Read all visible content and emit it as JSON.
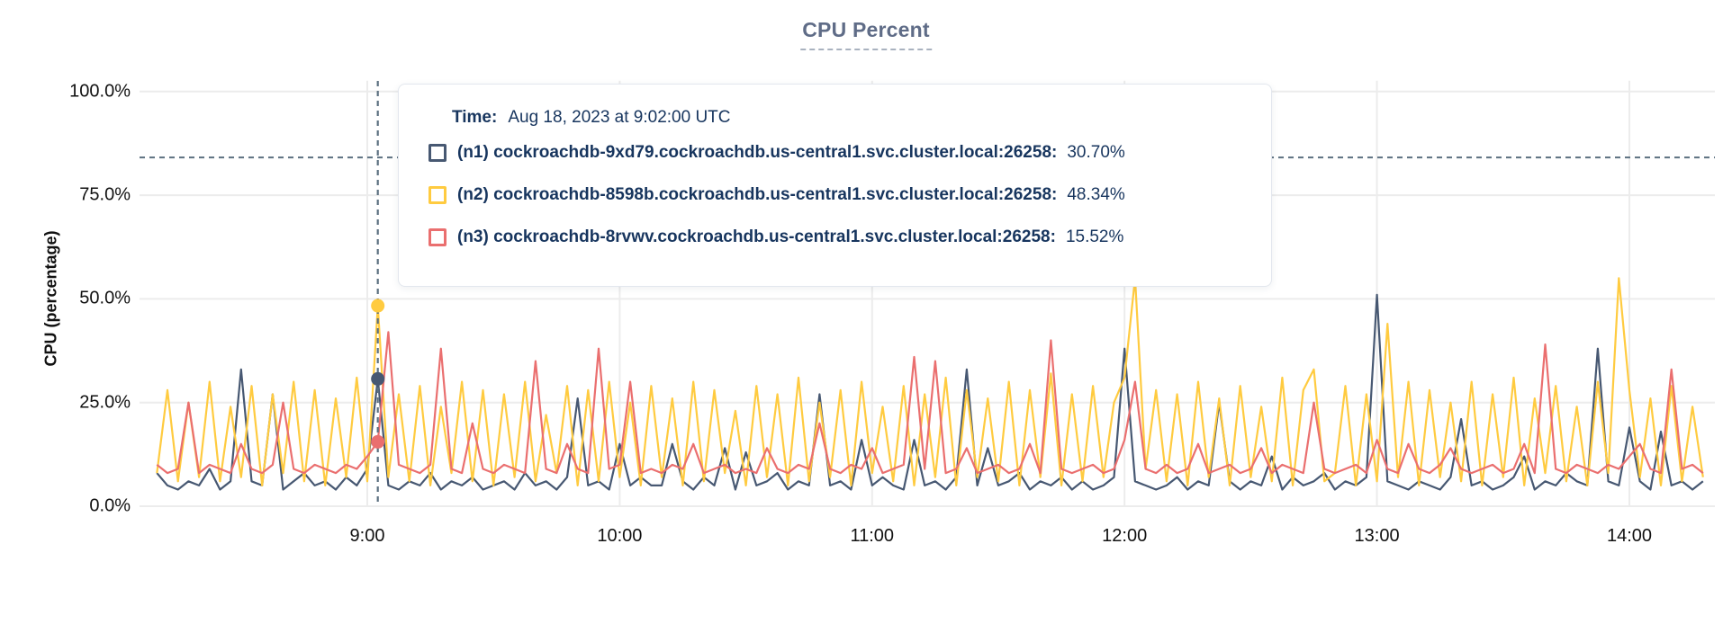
{
  "title": "CPU Percent",
  "y_axis": {
    "label": "CPU (percentage)",
    "ticks": [
      {
        "label": "100.0%",
        "value": 100
      },
      {
        "label": "75.0%",
        "value": 75
      },
      {
        "label": "50.0%",
        "value": 50
      },
      {
        "label": "25.0%",
        "value": 25
      },
      {
        "label": "0.0%",
        "value": 0
      }
    ]
  },
  "x_axis": {
    "ticks": [
      {
        "label": "9:00",
        "min": 540
      },
      {
        "label": "10:00",
        "min": 600
      },
      {
        "label": "11:00",
        "min": 660
      },
      {
        "label": "12:00",
        "min": 720
      },
      {
        "label": "13:00",
        "min": 780
      },
      {
        "label": "14:00",
        "min": 840
      }
    ]
  },
  "tooltip": {
    "time_label": "Time:",
    "time_value": "Aug 18, 2023 at 9:02:00 UTC",
    "series": [
      {
        "name": "(n1) cockroachdb-9xd79.cockroachdb.us-central1.svc.cluster.local:26258:",
        "value": "30.70%",
        "color": "#475872"
      },
      {
        "name": "(n2) cockroachdb-8598b.cockroachdb.us-central1.svc.cluster.local:26258:",
        "value": "48.34%",
        "color": "#ffcb40"
      },
      {
        "name": "(n3) cockroachdb-8rvwv.cockroachdb.us-central1.svc.cluster.local:26258:",
        "value": "15.52%",
        "color": "#ea6f6f"
      }
    ]
  },
  "hover": {
    "time_min": 542.5,
    "crosshair_y_percent": 84.1,
    "dot_values": [
      30.7,
      48.34,
      15.52
    ],
    "crosshair_color": "#5c7080"
  },
  "colors": {
    "grid": "#ececec",
    "title": "#5f6c87",
    "tooltip_text": "#17355e"
  },
  "chart_data": {
    "type": "line",
    "title": "CPU Percent",
    "xlabel": "",
    "ylabel": "CPU (percentage)",
    "ylim": [
      0,
      100
    ],
    "grid": true,
    "legend_position": "tooltip-overlay",
    "x_unit": "minutes-after-midnight",
    "x_domain_min": [
      486,
      860
    ],
    "x_start_min": 490,
    "x_step_min": 2.5,
    "series": [
      {
        "name": "(n1) cockroachdb-9xd79.cockroachdb.us-central1.svc.cluster.local:26258",
        "color": "#475872",
        "values": [
          8,
          5,
          4,
          6,
          5,
          9,
          4,
          6,
          33,
          6,
          5,
          27,
          4,
          6,
          8,
          5,
          6,
          4,
          7,
          5,
          9,
          30.7,
          5,
          4,
          6,
          5,
          8,
          4,
          6,
          5,
          7,
          4,
          5,
          6,
          4,
          8,
          5,
          6,
          4,
          7,
          26,
          5,
          6,
          4,
          15,
          5,
          7,
          5,
          5,
          15,
          6,
          4,
          7,
          5,
          14,
          4,
          13,
          5,
          6,
          8,
          4,
          6,
          5,
          27,
          5,
          6,
          4,
          16,
          5,
          7,
          5,
          4,
          16,
          5,
          6,
          4,
          7,
          33,
          5,
          14,
          5,
          6,
          8,
          4,
          6,
          5,
          7,
          4,
          6,
          4,
          5,
          7,
          38,
          6,
          5,
          4,
          5,
          7,
          4,
          6,
          5,
          25,
          6,
          4,
          6,
          5,
          12,
          4,
          7,
          5,
          6,
          8,
          4,
          6,
          5,
          7,
          51,
          6,
          5,
          4,
          6,
          5,
          4,
          7,
          21,
          5,
          6,
          4,
          5,
          7,
          12,
          4,
          6,
          5,
          8,
          6,
          5,
          38,
          6,
          5,
          19,
          6,
          4,
          18,
          5,
          6,
          4,
          6
        ]
      },
      {
        "name": "(n2) cockroachdb-8598b.cockroachdb.us-central1.svc.cluster.local:26258",
        "color": "#ffcb40",
        "values": [
          8,
          28,
          6,
          25,
          7,
          30,
          6,
          24,
          7,
          29,
          5,
          27,
          8,
          30,
          6,
          28,
          5,
          26,
          7,
          31,
          6,
          48.3,
          7,
          27,
          6,
          29,
          5,
          24,
          8,
          30,
          6,
          28,
          5,
          27,
          7,
          30,
          6,
          22,
          8,
          29,
          5,
          28,
          6,
          30,
          7,
          25,
          5,
          29,
          7,
          26,
          5,
          30,
          6,
          28,
          8,
          23,
          5,
          29,
          7,
          27,
          5,
          31,
          6,
          25,
          7,
          28,
          5,
          30,
          8,
          24,
          6,
          29,
          5,
          27,
          7,
          31,
          5,
          28,
          7,
          26,
          6,
          30,
          5,
          28,
          7,
          32,
          5,
          27,
          6,
          29,
          7,
          25,
          31,
          55,
          9,
          28,
          6,
          27,
          5,
          30,
          7,
          26,
          5,
          29,
          7,
          24,
          6,
          31,
          5,
          28,
          33,
          6,
          8,
          29,
          5,
          27,
          6,
          44,
          7,
          30,
          5,
          28,
          7,
          25,
          6,
          30,
          5,
          27,
          7,
          31,
          5,
          26,
          8,
          29,
          6,
          24,
          5,
          30,
          8,
          55,
          28,
          7,
          26,
          5,
          29,
          6,
          24,
          7
        ]
      },
      {
        "name": "(n3) cockroachdb-8rvwv.cockroachdb.us-central1.svc.cluster.local:26258",
        "color": "#ea6f6f",
        "values": [
          10,
          8,
          9,
          25,
          8,
          10,
          9,
          8,
          15,
          9,
          8,
          10,
          25,
          9,
          8,
          10,
          9,
          8,
          10,
          9,
          12,
          15.5,
          42,
          10,
          9,
          8,
          10,
          38,
          9,
          8,
          20,
          9,
          8,
          10,
          9,
          8,
          35,
          9,
          8,
          15,
          9,
          8,
          38,
          9,
          10,
          30,
          8,
          9,
          8,
          10,
          9,
          15,
          8,
          9,
          10,
          8,
          9,
          8,
          14,
          9,
          8,
          10,
          9,
          20,
          9,
          8,
          10,
          9,
          14,
          8,
          9,
          10,
          36,
          9,
          35,
          8,
          9,
          14,
          8,
          9,
          10,
          8,
          9,
          15,
          8,
          40,
          9,
          8,
          9,
          10,
          8,
          9,
          16,
          30,
          9,
          8,
          10,
          8,
          9,
          15,
          8,
          9,
          10,
          8,
          9,
          14,
          8,
          10,
          9,
          8,
          25,
          9,
          8,
          9,
          10,
          8,
          16,
          9,
          8,
          15,
          9,
          8,
          10,
          14,
          9,
          8,
          9,
          10,
          8,
          9,
          15,
          8,
          39,
          9,
          8,
          10,
          9,
          8,
          10,
          9,
          12,
          15,
          9,
          8,
          33,
          9,
          10,
          8
        ]
      }
    ]
  }
}
